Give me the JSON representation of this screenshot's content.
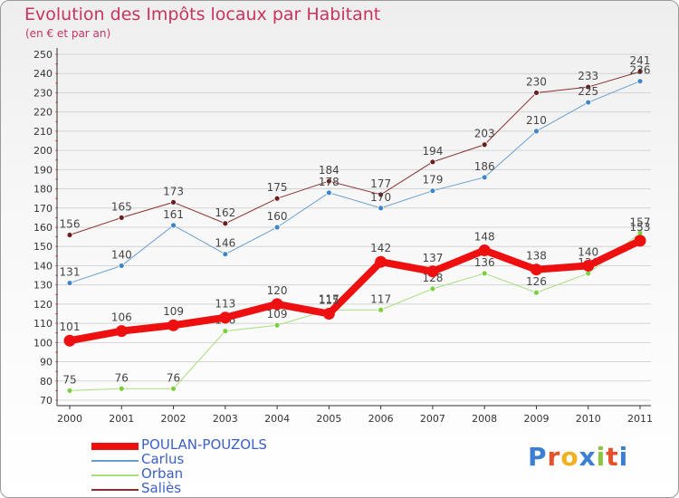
{
  "colors": {
    "title": "#c8345c",
    "legend_text": "#3d5fc6",
    "grid": "#d4d4d4",
    "axis": "#333333",
    "tick_red": "#e07070"
  },
  "logo": {
    "text": "Proxiti",
    "letter_colors": [
      "#3a7fd4",
      "#e8502a",
      "#f0b020",
      "#3a7fd4",
      "#8cc63f",
      "#e8502a",
      "#3a7fd4"
    ]
  },
  "chart_data": {
    "type": "line",
    "title": "Evolution des Impôts locaux par Habitant",
    "subtitle": "(en € et par an)",
    "xlabel": "",
    "ylabel": "",
    "categories": [
      "2000",
      "2001",
      "2002",
      "2003",
      "2004",
      "2005",
      "2006",
      "2007",
      "2008",
      "2009",
      "2010",
      "2011"
    ],
    "ylim": [
      70,
      250
    ],
    "yticks": [
      70,
      80,
      90,
      100,
      110,
      120,
      130,
      140,
      150,
      160,
      170,
      180,
      190,
      200,
      210,
      220,
      230,
      240,
      250
    ],
    "grid": true,
    "series": [
      {
        "name": "Saliès",
        "color": "#8b2e2e",
        "marker": "#6a1f1f",
        "width": 1,
        "values": [
          156,
          165,
          173,
          162,
          175,
          184,
          177,
          194,
          203,
          230,
          233,
          241
        ]
      },
      {
        "name": "Carlus",
        "color": "#6a9fd0",
        "marker": "#3f86c8",
        "width": 1,
        "values": [
          131,
          140,
          161,
          146,
          160,
          178,
          170,
          179,
          186,
          210,
          225,
          236
        ]
      },
      {
        "name": "Orban",
        "color": "#a8de7c",
        "marker": "#7ccf40",
        "width": 1,
        "values": [
          75,
          76,
          76,
          106,
          109,
          117,
          117,
          128,
          136,
          126,
          136,
          157
        ]
      },
      {
        "name": "POULAN-POUZOLS",
        "color": "#ee1010",
        "marker": "#ee1010",
        "width": 8,
        "values": [
          101,
          106,
          109,
          113,
          120,
          115,
          142,
          137,
          148,
          138,
          140,
          153
        ]
      }
    ],
    "legend": {
      "position": "bottom-left",
      "entries": [
        "POULAN-POUZOLS",
        "Carlus",
        "Orban",
        "Saliès"
      ]
    }
  }
}
